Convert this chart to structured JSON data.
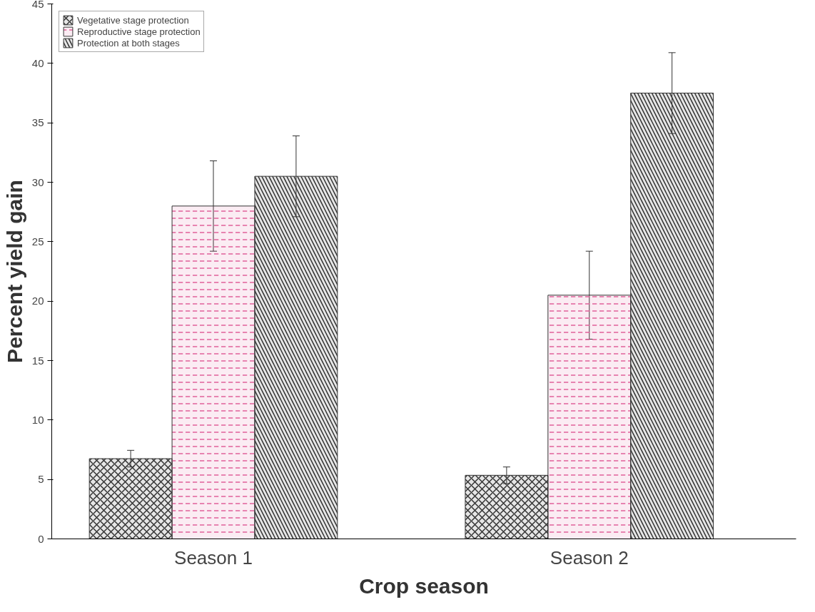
{
  "chart_data": {
    "type": "bar",
    "xlabel": "Crop season",
    "ylabel": "Percent yield gain",
    "categories": [
      "Season 1",
      "Season 2"
    ],
    "series": [
      {
        "name": "Vegetative stage protection",
        "color": "#333333",
        "values": [
          6.75,
          5.35
        ],
        "errors": [
          0.7,
          0.7
        ]
      },
      {
        "name": "Reproductive stage protection",
        "color": "#e0609a",
        "values": [
          28.0,
          20.5
        ],
        "errors": [
          3.8,
          3.7
        ]
      },
      {
        "name": "Protection at both stages",
        "color": "#333333",
        "values": [
          30.5,
          37.5
        ],
        "errors": [
          3.4,
          3.4
        ]
      }
    ],
    "ylim": [
      0,
      45
    ],
    "yticks": [
      0,
      5,
      10,
      15,
      20,
      25,
      30,
      35,
      40,
      45
    ],
    "grid": false,
    "legend": "top left"
  }
}
